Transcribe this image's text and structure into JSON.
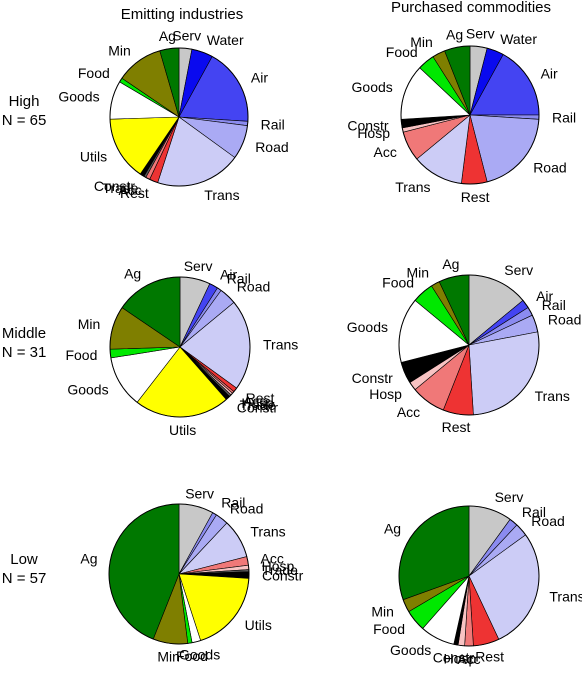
{
  "columns": [
    "Emitting industries",
    "Purchased commodities"
  ],
  "rows": [
    {
      "label": "High",
      "n_label": "N = 65"
    },
    {
      "label": "Middle",
      "n_label": "N = 31"
    },
    {
      "label": "Low",
      "n_label": "N = 57"
    }
  ],
  "sector_colors": {
    "Serv": "#c8c8c8",
    "Water": "#0a0aef",
    "Air": "#4444f2",
    "Rail": "#8b8bf0",
    "Road": "#aaaaf4",
    "Trans": "#ccccf6",
    "Rest": "#ee3333",
    "Acc": "#f07878",
    "Hosp": "#f8c3c3",
    "Trade": "#5a5a5a",
    "Constr": "#000000",
    "Utils": "#ffff00",
    "Goods": "#ffffff",
    "Food": "#00e800",
    "Min": "#7f7f00",
    "Ag": "#007800"
  },
  "chart_data": [
    {
      "type": "pie",
      "title": "Emitting industries",
      "row": "High",
      "categories": [
        "Serv",
        "Water",
        "Air",
        "Rail",
        "Road",
        "Trans",
        "Rest",
        "Acc",
        "Trade",
        "Constr",
        "Utils",
        "Goods",
        "Food",
        "Min",
        "Ag"
      ],
      "values": [
        3,
        5,
        18,
        1,
        8,
        20,
        2,
        1,
        0.5,
        1,
        15,
        9,
        1,
        11,
        4.5
      ]
    },
    {
      "type": "pie",
      "title": "Purchased commodities",
      "row": "High",
      "categories": [
        "Serv",
        "Water",
        "Air",
        "Rail",
        "Road",
        "Rest",
        "Trans",
        "Acc",
        "Hosp",
        "Constr",
        "Goods",
        "Food",
        "Min",
        "Ag"
      ],
      "values": [
        4,
        4,
        17,
        1,
        20,
        6,
        12,
        7,
        1,
        2,
        13,
        4,
        3,
        6
      ]
    },
    {
      "type": "pie",
      "title": "Emitting industries",
      "row": "Middle",
      "categories": [
        "Serv",
        "Air",
        "Rail",
        "Road",
        "Trans",
        "Rest",
        "Acc",
        "Hosp",
        "Trade",
        "Constr",
        "Utils",
        "Goods",
        "Food",
        "Min",
        "Ag"
      ],
      "values": [
        7,
        2,
        1,
        4,
        21,
        1,
        0.5,
        0.5,
        0.5,
        1,
        22,
        12,
        2,
        10,
        15.5
      ]
    },
    {
      "type": "pie",
      "title": "Purchased commodities",
      "row": "Middle",
      "categories": [
        "Serv",
        "Air",
        "Rail",
        "Road",
        "Trans",
        "Rest",
        "Acc",
        "Hosp",
        "Constr",
        "Goods",
        "Food",
        "Min",
        "Ag"
      ],
      "values": [
        14,
        2,
        2,
        4,
        27,
        7,
        8,
        2,
        5,
        15,
        5,
        2,
        7
      ]
    },
    {
      "type": "pie",
      "title": "Emitting industries",
      "row": "Low",
      "categories": [
        "Serv",
        "Rail",
        "Road",
        "Trans",
        "Acc",
        "Hosp",
        "Trade",
        "Constr",
        "Utils",
        "Goods",
        "Food",
        "Min",
        "Ag"
      ],
      "values": [
        8,
        1,
        3,
        9,
        2,
        1,
        0.5,
        1.5,
        19,
        2,
        1,
        8,
        44
      ]
    },
    {
      "type": "pie",
      "title": "Purchased commodities",
      "row": "Low",
      "categories": [
        "Serv",
        "Rail",
        "Road",
        "Trans",
        "Rest",
        "Acc",
        "Hosp",
        "Constr",
        "Goods",
        "Food",
        "Min",
        "Ag"
      ],
      "values": [
        10,
        2,
        3,
        28,
        6,
        2,
        1.5,
        1,
        8,
        5,
        3,
        30.5
      ]
    }
  ]
}
